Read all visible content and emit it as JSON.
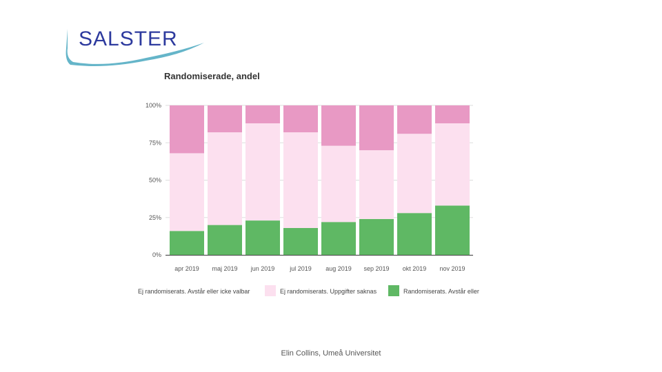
{
  "logo": {
    "text": "SALSTER",
    "color": "#2d3a9e",
    "accent": "#4aa8c0"
  },
  "footer": "Elin Collins, Umeå Universitet",
  "colors": {
    "series0": "#e899c4",
    "series1": "#fce0ef",
    "series2": "#5fb864"
  },
  "chart_data": {
    "type": "bar",
    "stacked": true,
    "title": "Randomiserade, andel",
    "categories": [
      "apr 2019",
      "maj 2019",
      "jun 2019",
      "jul 2019",
      "aug 2019",
      "sep 2019",
      "okt 2019",
      "nov 2019"
    ],
    "series": [
      {
        "name": "Ej randomiserats. Avstår eller icke valbar",
        "values": [
          32,
          18,
          12,
          18,
          27,
          30,
          19,
          12
        ]
      },
      {
        "name": "Ej randomiserats. Uppgifter saknas",
        "values": [
          52,
          62,
          65,
          64,
          51,
          46,
          53,
          55
        ]
      },
      {
        "name": "Randomiserats. Avstår eller",
        "values": [
          16,
          20,
          23,
          18,
          22,
          24,
          28,
          33
        ]
      }
    ],
    "yticks": [
      "0%",
      "25%",
      "50%",
      "75%",
      "100%"
    ],
    "ylim": [
      0,
      100
    ],
    "grid": true,
    "legend_position": "bottom"
  }
}
